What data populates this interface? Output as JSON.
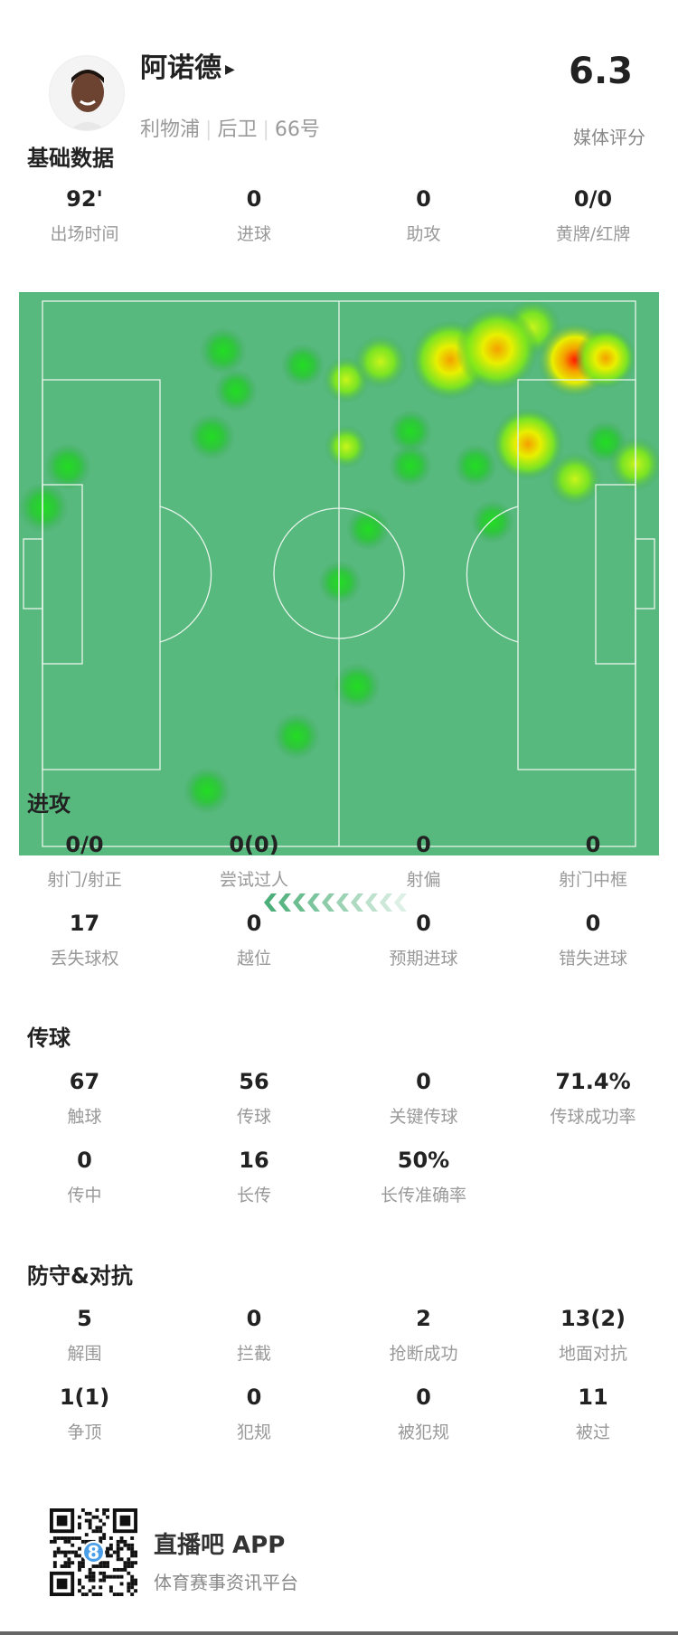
{
  "player": {
    "name": "阿诺德",
    "team": "利物浦",
    "position": "后卫",
    "number": "66号",
    "rating": "6.3",
    "rating_label": "媒体评分"
  },
  "basic": {
    "title": "基础数据",
    "stats": [
      {
        "value": "92'",
        "label": "出场时间"
      },
      {
        "value": "0",
        "label": "进球"
      },
      {
        "value": "0",
        "label": "助攻"
      },
      {
        "value": "0/0",
        "label": "黄牌/红牌"
      }
    ]
  },
  "attack": {
    "title": "进攻",
    "stats": [
      {
        "value": "0/0",
        "label": "射门/射正"
      },
      {
        "value": "0(0)",
        "label": "尝试过人"
      },
      {
        "value": "0",
        "label": "射偏"
      },
      {
        "value": "0",
        "label": "射门中框"
      },
      {
        "value": "17",
        "label": "丢失球权"
      },
      {
        "value": "0",
        "label": "越位"
      },
      {
        "value": "0",
        "label": "预期进球"
      },
      {
        "value": "0",
        "label": "错失进球"
      }
    ]
  },
  "passing": {
    "title": "传球",
    "stats": [
      {
        "value": "67",
        "label": "触球"
      },
      {
        "value": "56",
        "label": "传球"
      },
      {
        "value": "0",
        "label": "关键传球"
      },
      {
        "value": "71.4%",
        "label": "传球成功率"
      },
      {
        "value": "0",
        "label": "传中"
      },
      {
        "value": "16",
        "label": "长传"
      },
      {
        "value": "50%",
        "label": "长传准确率"
      }
    ]
  },
  "defense": {
    "title": "防守&对抗",
    "stats": [
      {
        "value": "5",
        "label": "解围"
      },
      {
        "value": "0",
        "label": "拦截"
      },
      {
        "value": "2",
        "label": "抢断成功"
      },
      {
        "value": "13(2)",
        "label": "地面对抗"
      },
      {
        "value": "1(1)",
        "label": "争顶"
      },
      {
        "value": "0",
        "label": "犯规"
      },
      {
        "value": "0",
        "label": "被犯规"
      },
      {
        "value": "11",
        "label": "被过"
      }
    ]
  },
  "footer": {
    "app_name": "直播吧 APP",
    "tagline": "体育赛事资讯平台",
    "qr_badge": "8"
  },
  "colors": {
    "pitch": "#57b97d",
    "heat_red": "#ff2a00",
    "heat_yellow": "#e8f000",
    "heat_green": "#22d022"
  },
  "icons": {
    "name_arrow": "play-triangle-icon",
    "direction": "chevron-left-icon"
  }
}
